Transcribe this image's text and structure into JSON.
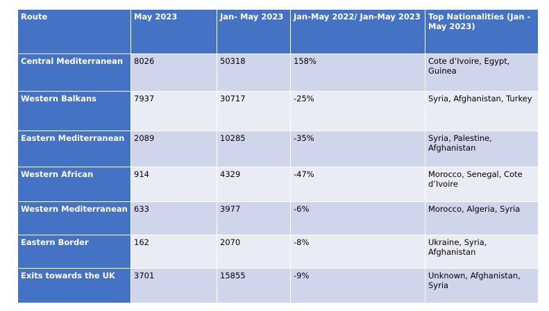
{
  "table": {
    "header": [
      "Route",
      "May 2023",
      "Jan- May 2023",
      "Jan-May 2022/ Jan-May 2023",
      "Top Nationalities (Jan - May 2023)"
    ],
    "rows": [
      [
        "Central Mediterranean",
        8026,
        50318,
        "158%",
        "Cote d’Ivoire, Egypt, Guinea"
      ],
      [
        "Western Balkans",
        7937,
        30717,
        "-25%",
        "Syria, Afghanistan, Turkey"
      ],
      [
        "Eastern Mediterranean",
        2089,
        10285,
        "-35%",
        "Syria, Palestine, Afghanistan"
      ],
      [
        "Western African",
        914,
        4329,
        "-47%",
        "Morocco, Senegal, Cote d’Ivoire"
      ],
      [
        "Western Mediterranean",
        633,
        3977,
        "-6%",
        "Morocco, Algeria, Syria"
      ],
      [
        "Eastern Border",
        162,
        2070,
        "-8%",
        "Ukraine, Syria, Afghanistan"
      ],
      [
        "Exits towards the UK",
        3701,
        15855,
        "-9%",
        "Unknown, Afghanistan, Syria"
      ]
    ]
  }
}
